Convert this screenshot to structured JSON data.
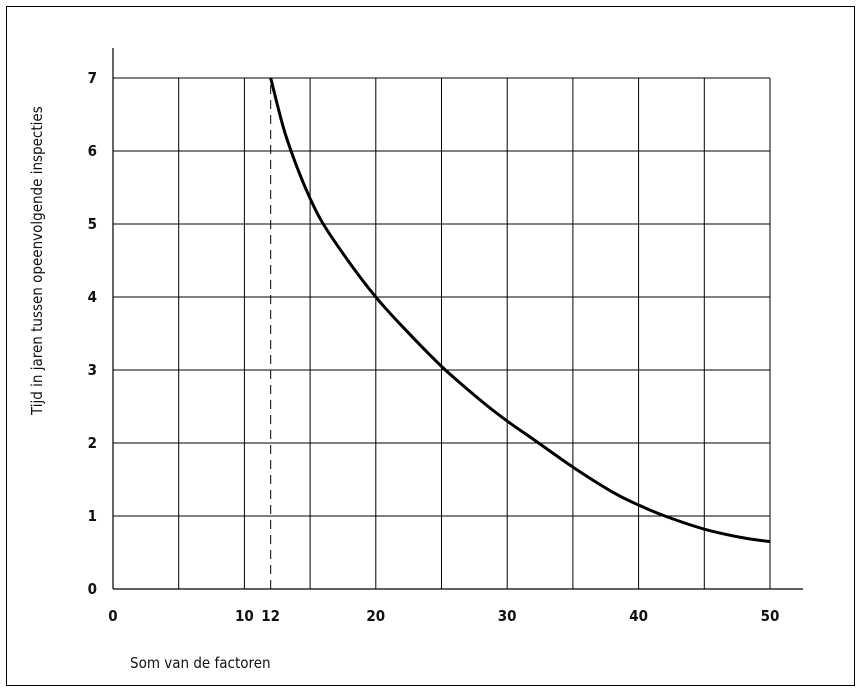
{
  "chart_data": {
    "type": "line",
    "xlabel": "Som van de factoren",
    "ylabel": "Tijd in jaren tussen opeenvolgende inspecties",
    "xlim": [
      0,
      50
    ],
    "ylim": [
      0,
      7
    ],
    "x_grid": [
      5,
      10,
      12,
      15,
      20,
      25,
      30,
      35,
      40,
      45,
      50
    ],
    "y_grid": [
      1,
      2,
      3,
      4,
      5,
      6,
      7
    ],
    "x_ticks": [
      0,
      10,
      12,
      20,
      30,
      40,
      50
    ],
    "y_ticks": [
      0,
      1,
      2,
      3,
      4,
      5,
      6,
      7
    ],
    "grid": true,
    "reference_line": {
      "x": 12,
      "y_from": 0,
      "y_to": 7,
      "style": "dashed"
    },
    "series": [
      {
        "x": [
          12,
          13,
          14,
          15,
          16,
          18,
          20,
          22,
          25,
          28,
          30,
          32,
          35,
          38,
          40,
          42,
          45,
          48,
          50
        ],
        "y": [
          7.0,
          6.3,
          5.78,
          5.35,
          5.0,
          4.47,
          4.0,
          3.6,
          3.05,
          2.58,
          2.3,
          2.05,
          1.67,
          1.33,
          1.15,
          1.0,
          0.82,
          0.7,
          0.65
        ]
      }
    ]
  }
}
